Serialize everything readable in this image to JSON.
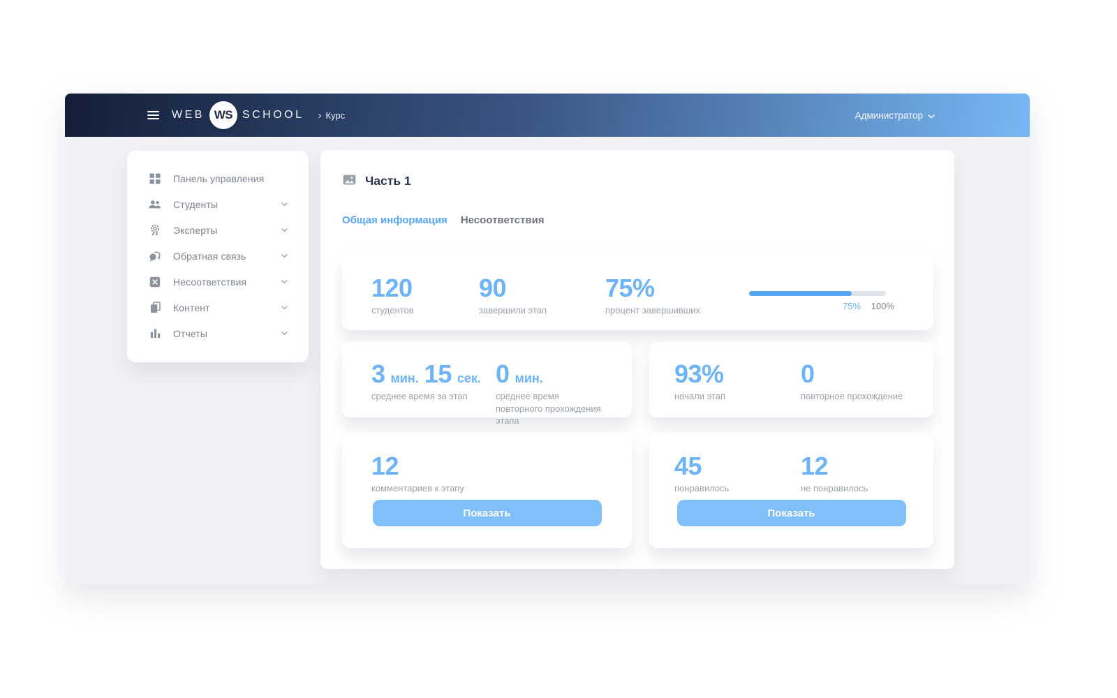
{
  "colors": {
    "accent_blue": "#6db3f5",
    "button_blue": "#7fc0fa",
    "progress_fill": "#57a5f0",
    "progress_track": "#dfe4ea",
    "header_dark": "#141e39",
    "header_light": "#77b7f5",
    "title_navy": "#27334f",
    "label_gray": "#9ba1ab",
    "sidebar_text": "#7e848e",
    "tab_inactive": "#6f747e"
  },
  "header": {
    "brand_left": "WEB",
    "brand_logo": "WS",
    "brand_right": "SCHOOL",
    "breadcrumb_separator": "›",
    "breadcrumb": "Курс",
    "user_label": "Администратор"
  },
  "sidebar": {
    "items": [
      {
        "label": "Панель управления",
        "icon": "dashboard-grid",
        "has_submenu": false
      },
      {
        "label": "Студенты",
        "icon": "students",
        "has_submenu": true
      },
      {
        "label": "Эксперты",
        "icon": "award-badge",
        "has_submenu": true
      },
      {
        "label": "Обратная связь",
        "icon": "feedback-bubbles",
        "has_submenu": true
      },
      {
        "label": "Несоответствия",
        "icon": "x-square",
        "has_submenu": true
      },
      {
        "label": "Контент",
        "icon": "copy-pages",
        "has_submenu": true
      },
      {
        "label": "Отчеты",
        "icon": "bar-chart",
        "has_submenu": true
      }
    ]
  },
  "main": {
    "title": "Часть 1",
    "title_icon": "image-icon",
    "tabs": [
      {
        "label": "Общая информация",
        "active": true
      },
      {
        "label": "Несоответствия",
        "active": false
      }
    ],
    "overview_card": {
      "stats": [
        {
          "value": "120",
          "label": "студентов"
        },
        {
          "value": "90",
          "label": "завершили этап"
        },
        {
          "value": "75%",
          "label": "процент завершивших"
        }
      ],
      "progress": {
        "percent": 75,
        "value_label": "75%",
        "max_label": "100%"
      }
    },
    "time_card": {
      "stat1": {
        "num1": "3",
        "unit1": "мин.",
        "num2": "15",
        "unit2": "сек.",
        "label": "среднее время за этап"
      },
      "stat2": {
        "num1": "0",
        "unit1": "мин.",
        "label": "среднее время повторного прохождения этапа"
      }
    },
    "start_card": {
      "stats": [
        {
          "value": "93%",
          "label": "начали этап"
        },
        {
          "value": "0",
          "label": "повторное прохождение"
        }
      ]
    },
    "comments_card": {
      "value": "12",
      "label": "комментариев к этапу",
      "button_label": "Показать"
    },
    "likes_card": {
      "stats": [
        {
          "value": "45",
          "label": "понравилось"
        },
        {
          "value": "12",
          "label": "не понравилось"
        }
      ],
      "button_label": "Показать"
    }
  }
}
